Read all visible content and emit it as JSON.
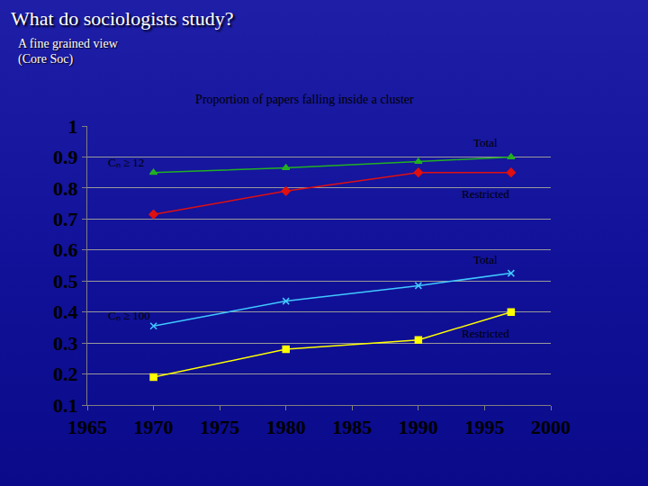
{
  "slide": {
    "title": "What do sociologists study?",
    "subtitle": [
      "A fine grained view",
      "(Core Soc)"
    ]
  },
  "chart_data": {
    "type": "line",
    "title": "Proportion of papers falling inside a cluster",
    "x": [
      1970,
      1980,
      1990,
      1997
    ],
    "series": [
      {
        "name": "Total",
        "color": "#22b022",
        "marker": "triangle-up",
        "values": [
          0.85,
          0.865,
          0.885,
          0.9
        ]
      },
      {
        "name": "Restricted",
        "color": "#e01010",
        "marker": "diamond",
        "values": [
          0.715,
          0.79,
          0.85,
          0.85
        ]
      },
      {
        "name": "Total",
        "color": "#40c8ff",
        "marker": "x-thin",
        "values": [
          0.355,
          0.435,
          0.485,
          0.525
        ]
      },
      {
        "name": "Restricted",
        "color": "#ffff00",
        "marker": "square",
        "values": [
          0.19,
          0.28,
          0.31,
          0.4
        ]
      }
    ],
    "annotations": [
      "Cₙ ≥ 12",
      "Cₙ ≥ 100"
    ],
    "xlim": [
      1965,
      2000
    ],
    "xticks": [
      1965,
      1970,
      1975,
      1980,
      1985,
      1990,
      1995,
      2000
    ],
    "ylim": [
      0.1,
      1
    ],
    "yticks": [
      0.1,
      0.2,
      0.3,
      0.4,
      0.5,
      0.6,
      0.7,
      0.8,
      0.9,
      1
    ],
    "grid": true
  }
}
